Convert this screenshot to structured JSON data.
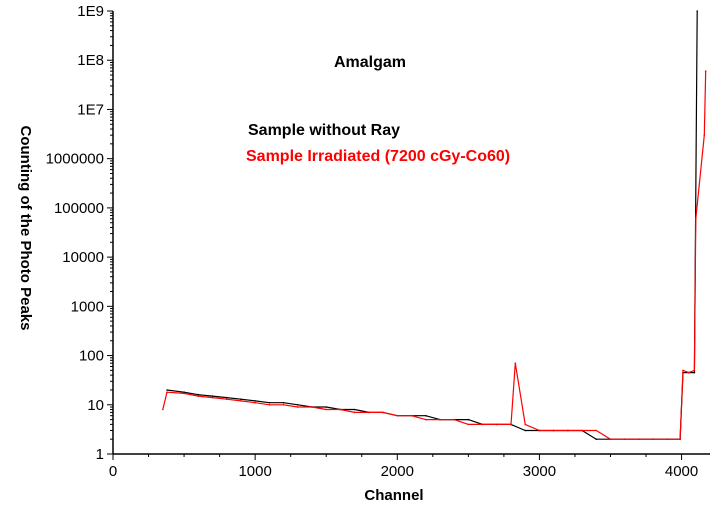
{
  "chart_data": {
    "type": "line",
    "title": "Amalgam",
    "xlabel": "Channel",
    "ylabel": "Counting of the Photo Peaks",
    "xlim": [
      0,
      4200
    ],
    "ylim": [
      1,
      1000000000
    ],
    "y_scale": "log",
    "grid": false,
    "legend_position": "top-center",
    "x_ticks": [
      0,
      1000,
      2000,
      3000,
      4000
    ],
    "x_tick_labels": [
      "0",
      "1000",
      "2000",
      "3000",
      "4000"
    ],
    "y_ticks": [
      1,
      10,
      100,
      1000,
      10000,
      100000,
      1000000,
      10000000,
      100000000,
      1000000000
    ],
    "y_tick_labels": [
      "1",
      "10",
      "100",
      "1000",
      "10000",
      "100000",
      "1000000",
      "1E7",
      "1E8",
      "1E9"
    ],
    "series": [
      {
        "name": "Sample without Ray",
        "color": "#000000",
        "x": [
          380,
          500,
          600,
          700,
          800,
          900,
          1000,
          1100,
          1200,
          1300,
          1400,
          1500,
          1600,
          1700,
          1800,
          1900,
          2000,
          2100,
          2200,
          2300,
          2400,
          2500,
          2600,
          2700,
          2800,
          2900,
          3000,
          3100,
          3200,
          3300,
          3400,
          3500,
          3600,
          3700,
          3800,
          3900,
          3990,
          4010,
          4050,
          4090,
          4110
        ],
        "y": [
          20,
          18,
          16,
          15,
          14,
          13,
          12,
          11,
          11,
          10,
          9,
          9,
          8,
          8,
          7,
          7,
          6,
          6,
          6,
          5,
          5,
          5,
          4,
          4,
          4,
          3,
          3,
          3,
          3,
          3,
          2,
          2,
          2,
          2,
          2,
          2,
          2,
          45,
          45,
          45,
          1000000000
        ]
      },
      {
        "name": "Sample Irradiated (7200 cGy-Co60)",
        "color": "#ff0000",
        "x": [
          350,
          380,
          500,
          600,
          700,
          800,
          900,
          1000,
          1100,
          1200,
          1300,
          1400,
          1500,
          1600,
          1700,
          1800,
          1900,
          2000,
          2100,
          2200,
          2300,
          2400,
          2500,
          2600,
          2700,
          2800,
          2830,
          2900,
          3000,
          3100,
          3200,
          3300,
          3400,
          3500,
          3600,
          3700,
          3800,
          3900,
          3990,
          4010,
          4050,
          4090,
          4100,
          4160,
          4170
        ],
        "y": [
          8,
          18,
          17,
          15,
          14,
          13,
          12,
          11,
          10,
          10,
          9,
          9,
          8,
          8,
          7,
          7,
          7,
          6,
          6,
          5,
          5,
          5,
          4,
          4,
          4,
          4,
          70,
          4,
          3,
          3,
          3,
          3,
          3,
          2,
          2,
          2,
          2,
          2,
          2,
          50,
          45,
          50,
          60000,
          3000000,
          60000000
        ]
      }
    ]
  }
}
